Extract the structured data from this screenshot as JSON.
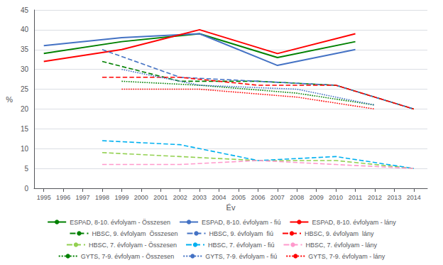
{
  "chart_data": {
    "type": "line",
    "xlabel": "Év",
    "ylabel": "%",
    "xlim": [
      1994.5,
      2014.7
    ],
    "xticks": [
      1995,
      1996,
      1997,
      1998,
      1999,
      2000,
      2001,
      2002,
      2003,
      2004,
      2005,
      2006,
      2007,
      2008,
      2009,
      2010,
      2011,
      2012,
      2013,
      2014
    ],
    "ylim": [
      0,
      45
    ],
    "yticks": [
      0,
      5,
      10,
      15,
      20,
      25,
      30,
      35,
      40,
      45
    ],
    "grid": true,
    "legend": "bottom",
    "series": [
      {
        "name": "ESPAD, 8-10. évfolyam - Összesen",
        "color": "#008000",
        "line_style": "solid",
        "x": [
          1995,
          1999,
          2003,
          2007,
          2011
        ],
        "values": [
          34,
          37,
          39,
          33,
          37
        ]
      },
      {
        "name": "ESPAD, 8-10. évfolyam - fiú",
        "color": "#4472C4",
        "line_style": "solid",
        "x": [
          1995,
          1999,
          2003,
          2007,
          2011
        ],
        "values": [
          36,
          38,
          39,
          31,
          35
        ]
      },
      {
        "name": "ESPAD, 8-10. évfolyam - lány",
        "color": "#FF0000",
        "line_style": "solid",
        "x": [
          1995,
          1999,
          2003,
          2007,
          2011
        ],
        "values": [
          32,
          35,
          40,
          34,
          39
        ]
      },
      {
        "name": "HBSC, 9. évfolyam  Összesen",
        "color": "#008000",
        "line_style": "dashed",
        "x": [
          1998,
          2002,
          2006,
          2010,
          2014
        ],
        "values": [
          32,
          27,
          27,
          26,
          20
        ]
      },
      {
        "name": "HBSC, 9. évfolyam  fiú",
        "color": "#4472C4",
        "line_style": "dashed",
        "x": [
          1998,
          2002,
          2006,
          2010,
          2014
        ],
        "values": [
          35,
          28,
          27,
          26,
          20
        ]
      },
      {
        "name": "HBSC, 9. évfolyam  lány",
        "color": "#FF0000",
        "line_style": "dashed",
        "x": [
          1998,
          2002,
          2006,
          2010,
          2014
        ],
        "values": [
          28,
          28,
          26,
          26,
          20
        ]
      },
      {
        "name": "HBSC, 7. évfolyam - Összesen",
        "color": "#92D050",
        "line_style": "dashed",
        "x": [
          1998,
          2002,
          2006,
          2010,
          2014
        ],
        "values": [
          9,
          8,
          7,
          7,
          5
        ]
      },
      {
        "name": "HBSC, 7. évfolyam - fiú",
        "color": "#00B0F0",
        "line_style": "dashed",
        "x": [
          1998,
          2002,
          2006,
          2010,
          2014
        ],
        "values": [
          12,
          11,
          7,
          8,
          5
        ]
      },
      {
        "name": "HBSC, 7. évfolyam - lány",
        "color": "#FF99CC",
        "line_style": "dashed",
        "x": [
          1998,
          2002,
          2006,
          2010,
          2014
        ],
        "values": [
          6,
          6,
          7,
          6,
          5
        ]
      },
      {
        "name": "GYTS, 7-9. évfolyam - Összesen",
        "color": "#008000",
        "line_style": "dotted",
        "x": [
          1999,
          2003,
          2008,
          2012
        ],
        "values": [
          27,
          26,
          24,
          21
        ]
      },
      {
        "name": "GYTS, 7-9. évfolyam - fiú",
        "color": "#4472C4",
        "line_style": "dotted",
        "x": [
          1999,
          2003,
          2008,
          2012
        ],
        "values": [
          30,
          26,
          25,
          21
        ]
      },
      {
        "name": "GYTS, 7-9. évfolyam - lány",
        "color": "#FF0000",
        "line_style": "dotted",
        "x": [
          1999,
          2003,
          2008,
          2012
        ],
        "values": [
          25,
          25,
          23,
          20
        ]
      }
    ]
  }
}
